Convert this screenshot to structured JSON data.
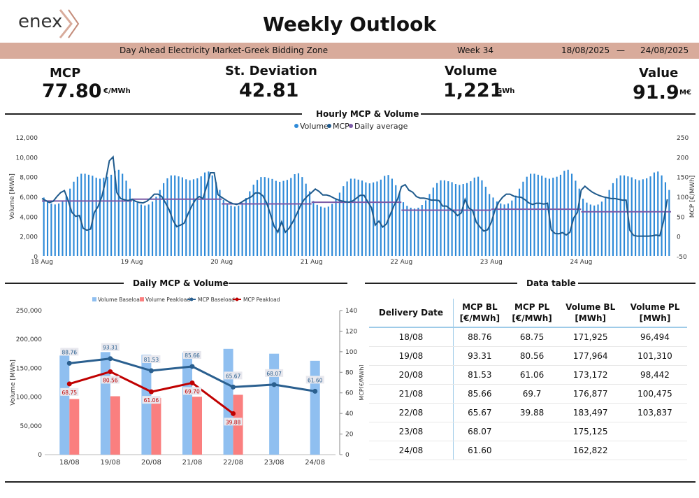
{
  "logo": {
    "text": "enex"
  },
  "title": "Weekly Outlook",
  "band": {
    "market": "Day Ahead Electricity Market-Greek Bidding Zone",
    "week": "Week 34",
    "date_from": "18/08/2025",
    "separator": "—",
    "date_to": "24/08/2025"
  },
  "kpis": {
    "mcp": {
      "label": "MCP",
      "value": "77.80",
      "unit": "€/MWh"
    },
    "stdev": {
      "label": "St. Deviation",
      "value": "42.81"
    },
    "volume": {
      "label": "Volume",
      "value": "1,221",
      "unit": "GWh"
    },
    "value": {
      "label": "Value",
      "value": "91.9",
      "unit": "M€"
    }
  },
  "sections": {
    "hourly": "Hourly MCP & Volume",
    "daily": "Daily MCP & Volume",
    "table": "Data table"
  },
  "colors": {
    "volume": "#2e8ad8",
    "mcp": "#1f5a8c",
    "daily_avg": "#7b5aa6",
    "vol_base": "#8fbff0",
    "vol_peak": "#fa7f7f",
    "mcp_base": "#2a5f8f",
    "mcp_peak": "#c00000",
    "band": "#d8ab9b"
  },
  "chart_data": [
    {
      "type": "bar",
      "title": "Hourly MCP & Volume",
      "legend": [
        "Volume",
        "MCP",
        "Daily average"
      ],
      "legend_position": "top-center",
      "xlabel": "",
      "ylabel": "Volume [MWh]",
      "y2label": "MCP [€/MWh]",
      "ylim": [
        0,
        12000
      ],
      "yticks": [
        "0",
        "2,000",
        "4,000",
        "6,000",
        "8,000",
        "10,000",
        "12,000"
      ],
      "y2lim": [
        -50,
        250
      ],
      "y2ticks": [
        "-50",
        "0",
        "50",
        "100",
        "150",
        "200",
        "250"
      ],
      "day_labels": [
        "18 Aug",
        "19 Aug",
        "20 Aug",
        "21 Aug",
        "22 Aug",
        "23 Aug",
        "24 Aug"
      ],
      "daily_average": [
        88.76,
        93.31,
        81.53,
        85.66,
        65.67,
        68.07,
        61.6
      ],
      "volume_profile": [
        5900,
        5500,
        5300,
        5200,
        5300,
        5600,
        6100,
        6800,
        7500,
        8000,
        8300,
        8300,
        8200,
        8100,
        7900,
        7800,
        7900,
        8000,
        8200,
        8600,
        8700,
        8300,
        7600,
        6800
      ],
      "mcp": [
        [
          95,
          90,
          85,
          88,
          100,
          110,
          115,
          90,
          60,
          50,
          52,
          20,
          15,
          18,
          60,
          75,
          100,
          140,
          190,
          200,
          110,
          95,
          92,
          90
        ],
        [
          93,
          88,
          85,
          84,
          88,
          96,
          106,
          106,
          100,
          84,
          66,
          40,
          24,
          28,
          33,
          56,
          76,
          92,
          100,
          95,
          126,
          160,
          160,
          105
        ],
        [
          98,
          92,
          86,
          82,
          80,
          84,
          90,
          95,
          100,
          109,
          109,
          102,
          84,
          56,
          25,
          10,
          36,
          10,
          20,
          36,
          55,
          76,
          92,
          102
        ],
        [
          110,
          119,
          113,
          104,
          104,
          101,
          96,
          92,
          89,
          87,
          86,
          89,
          96,
          103,
          103,
          87,
          72,
          28,
          38,
          23,
          31,
          54,
          77,
          94
        ],
        [
          125,
          130,
          116,
          111,
          100,
          96,
          96,
          94,
          91,
          91,
          90,
          76,
          76,
          69,
          62,
          52,
          59,
          93,
          71,
          65,
          35,
          23,
          13,
          16
        ],
        [
          35,
          66,
          86,
          98,
          106,
          106,
          101,
          99,
          98,
          92,
          84,
          80,
          83,
          83,
          81,
          83,
          16,
          7,
          6,
          9,
          3,
          10,
          46,
          60
        ],
        [
          116,
          126,
          118,
          111,
          106,
          102,
          99,
          97,
          95,
          95,
          93,
          91,
          91,
          15,
          2,
          0,
          0,
          0,
          0,
          1,
          3,
          1,
          38,
          93
        ]
      ],
      "mcp_tail": [
        103,
        109,
        114,
        116,
        113,
        111,
        106,
        101
      ],
      "x_range_hours": [
        0,
        168
      ]
    },
    {
      "type": "bar",
      "title": "Daily MCP & Volume",
      "categories": [
        "18/08",
        "19/08",
        "20/08",
        "21/08",
        "22/08",
        "23/08",
        "24/08"
      ],
      "legend": [
        "Volume Baseload",
        "Volume Peakload",
        "MCP Baseload",
        "MCP Peakload"
      ],
      "legend_position": "top-center",
      "ylabel": "Volume [MWh]",
      "y2label": "MCP[€/MWh]",
      "ylim": [
        0,
        250000
      ],
      "yticks": [
        "0",
        "50,000",
        "100,000",
        "150,000",
        "200,000",
        "250,000"
      ],
      "y2lim": [
        0,
        140
      ],
      "y2ticks": [
        "0",
        "20",
        "40",
        "60",
        "80",
        "100",
        "120",
        "140"
      ],
      "series": [
        {
          "name": "Volume Baseload",
          "values": [
            171925,
            177964,
            173172,
            176877,
            183497,
            175125,
            162822
          ]
        },
        {
          "name": "Volume Peakload",
          "values": [
            96494,
            101310,
            98442,
            100475,
            103837,
            null,
            null
          ]
        },
        {
          "name": "MCP Baseload",
          "values": [
            88.76,
            93.31,
            81.53,
            85.66,
            65.67,
            68.07,
            61.6
          ]
        },
        {
          "name": "MCP Peakload",
          "values": [
            68.75,
            80.56,
            61.06,
            69.7,
            39.88,
            null,
            null
          ]
        }
      ],
      "labels_base": [
        "88.76",
        "93.31",
        "81.53",
        "85.66",
        "65.67",
        "68.07",
        "61.60"
      ],
      "labels_peak": [
        "68.75",
        "80.56",
        "61.06",
        "69.70",
        "39.88",
        "",
        ""
      ]
    }
  ],
  "table": {
    "headers": [
      "Delivery Date",
      "MCP BL\n[€/MWh]",
      "MCP PL\n[€/MWh]",
      "Volume BL\n[MWh]",
      "Volume PL\n[MWh]"
    ],
    "rows": [
      [
        "18/08",
        "88.76",
        "68.75",
        "171,925",
        "96,494"
      ],
      [
        "19/08",
        "93.31",
        "80.56",
        "177,964",
        "101,310"
      ],
      [
        "20/08",
        "81.53",
        "61.06",
        "173,172",
        "98,442"
      ],
      [
        "21/08",
        "85.66",
        "69.7",
        "176,877",
        "100,475"
      ],
      [
        "22/08",
        "65.67",
        "39.88",
        "183,497",
        "103,837"
      ],
      [
        "23/08",
        "68.07",
        "",
        "175,125",
        ""
      ],
      [
        "24/08",
        "61.60",
        "",
        "162,822",
        ""
      ]
    ]
  }
}
